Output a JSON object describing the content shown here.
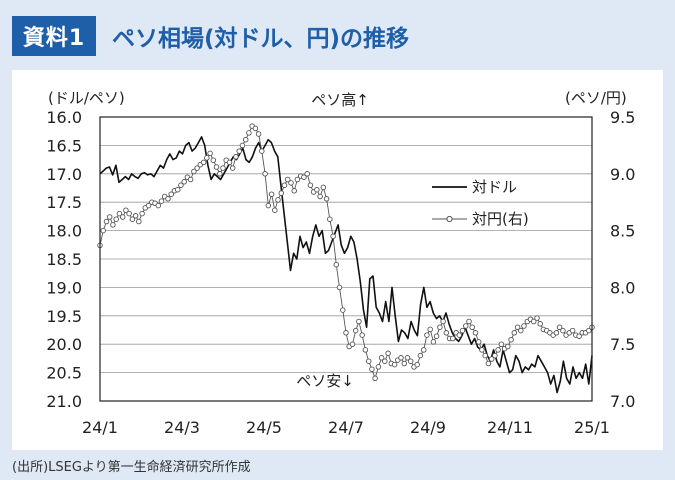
{
  "header": {
    "badge": "資料1",
    "title": "ペソ相場(対ドル、円)の推移"
  },
  "source": "(出所)LSEGより第一生命経済研究所作成",
  "chart_data": {
    "type": "line",
    "left_axis": {
      "unit_label": "(ドル/ペソ)",
      "min": 16.0,
      "max": 21.0,
      "inverted": true,
      "ticks": [
        "16.0",
        "16.5",
        "17.0",
        "17.5",
        "18.0",
        "18.5",
        "19.0",
        "19.5",
        "20.0",
        "20.5",
        "21.0"
      ]
    },
    "right_axis": {
      "unit_label": "(ペソ/円)",
      "min": 7.0,
      "max": 9.5,
      "ticks": [
        "9.5",
        "9.0",
        "8.5",
        "8.0",
        "7.5",
        "7.0"
      ]
    },
    "x_ticks": [
      "24/1",
      "24/3",
      "24/5",
      "24/7",
      "24/9",
      "24/11",
      "25/1"
    ],
    "annotations": {
      "top": "ペソ高↑",
      "bottom": "ペソ安↓"
    },
    "grid": true,
    "legend_position": "right",
    "series": [
      {
        "name": "対ドル",
        "axis": "left",
        "style": "line",
        "color": "#111111",
        "values": [
          17.0,
          16.95,
          16.9,
          16.88,
          17.02,
          16.85,
          17.15,
          17.1,
          17.05,
          17.1,
          17.0,
          17.05,
          17.08,
          17.0,
          16.98,
          17.02,
          17.0,
          17.05,
          16.95,
          16.85,
          16.9,
          16.75,
          16.65,
          16.75,
          16.72,
          16.6,
          16.65,
          16.5,
          16.45,
          16.6,
          16.55,
          16.45,
          16.35,
          16.5,
          16.85,
          17.1,
          17.0,
          17.05,
          17.1,
          17.0,
          16.9,
          16.8,
          16.7,
          16.75,
          16.65,
          16.55,
          16.75,
          16.8,
          16.7,
          16.55,
          16.45,
          16.6,
          16.5,
          16.4,
          16.45,
          16.6,
          16.7,
          17.2,
          17.7,
          18.2,
          18.7,
          18.4,
          18.5,
          18.1,
          18.3,
          18.2,
          18.4,
          18.1,
          17.9,
          18.1,
          18.0,
          18.4,
          18.35,
          18.2,
          18.05,
          17.9,
          18.25,
          18.4,
          18.3,
          18.1,
          18.2,
          18.5,
          18.9,
          19.4,
          19.7,
          18.85,
          18.8,
          19.35,
          19.45,
          19.6,
          19.25,
          19.6,
          19.0,
          19.5,
          19.95,
          19.75,
          19.8,
          19.9,
          19.6,
          19.75,
          19.85,
          19.3,
          19.0,
          19.35,
          19.25,
          19.45,
          19.55,
          19.5,
          19.6,
          19.45,
          19.65,
          19.8,
          19.9,
          19.95,
          19.85,
          19.7,
          19.85,
          20.0,
          19.9,
          20.05,
          20.1,
          20.0,
          20.2,
          20.3,
          20.1,
          20.3,
          20.4,
          20.1,
          20.3,
          20.5,
          20.45,
          20.2,
          20.3,
          20.5,
          20.4,
          20.45,
          20.35,
          20.4,
          20.2,
          20.3,
          20.4,
          20.5,
          20.7,
          20.55,
          20.85,
          20.65,
          20.3,
          20.6,
          20.7,
          20.4,
          20.6,
          20.5,
          20.6,
          20.35,
          20.7,
          20.2
        ]
      },
      {
        "name": "対円(右)",
        "axis": "right",
        "style": "line-marker",
        "color": "#555555",
        "values": [
          8.37,
          8.5,
          8.58,
          8.62,
          8.55,
          8.6,
          8.65,
          8.62,
          8.68,
          8.65,
          8.6,
          8.63,
          8.58,
          8.65,
          8.7,
          8.72,
          8.75,
          8.74,
          8.72,
          8.76,
          8.8,
          8.78,
          8.82,
          8.85,
          8.86,
          8.9,
          8.93,
          8.97,
          8.95,
          9.02,
          9.05,
          9.08,
          9.1,
          9.14,
          9.18,
          9.12,
          9.06,
          9.0,
          9.05,
          9.12,
          9.1,
          9.05,
          9.15,
          9.2,
          9.25,
          9.3,
          9.36,
          9.42,
          9.4,
          9.35,
          9.2,
          9.0,
          8.72,
          8.82,
          8.68,
          8.77,
          8.83,
          8.9,
          8.95,
          8.92,
          8.85,
          8.95,
          8.98,
          8.97,
          9.0,
          8.9,
          8.84,
          8.86,
          8.8,
          8.88,
          8.78,
          8.6,
          8.45,
          8.2,
          8.0,
          7.8,
          7.6,
          7.48,
          7.5,
          7.62,
          7.7,
          7.58,
          7.45,
          7.35,
          7.28,
          7.2,
          7.3,
          7.38,
          7.35,
          7.42,
          7.33,
          7.32,
          7.36,
          7.38,
          7.33,
          7.38,
          7.35,
          7.3,
          7.32,
          7.4,
          7.45,
          7.58,
          7.63,
          7.52,
          7.57,
          7.65,
          7.7,
          7.6,
          7.55,
          7.55,
          7.6,
          7.58,
          7.62,
          7.66,
          7.7,
          7.65,
          7.6,
          7.52,
          7.45,
          7.4,
          7.33,
          7.37,
          7.4,
          7.45,
          7.5,
          7.46,
          7.48,
          7.54,
          7.6,
          7.65,
          7.62,
          7.66,
          7.7,
          7.72,
          7.7,
          7.73,
          7.68,
          7.63,
          7.62,
          7.6,
          7.58,
          7.6,
          7.65,
          7.62,
          7.58,
          7.6,
          7.62,
          7.58,
          7.57,
          7.6,
          7.6,
          7.62,
          7.65
        ]
      }
    ]
  }
}
